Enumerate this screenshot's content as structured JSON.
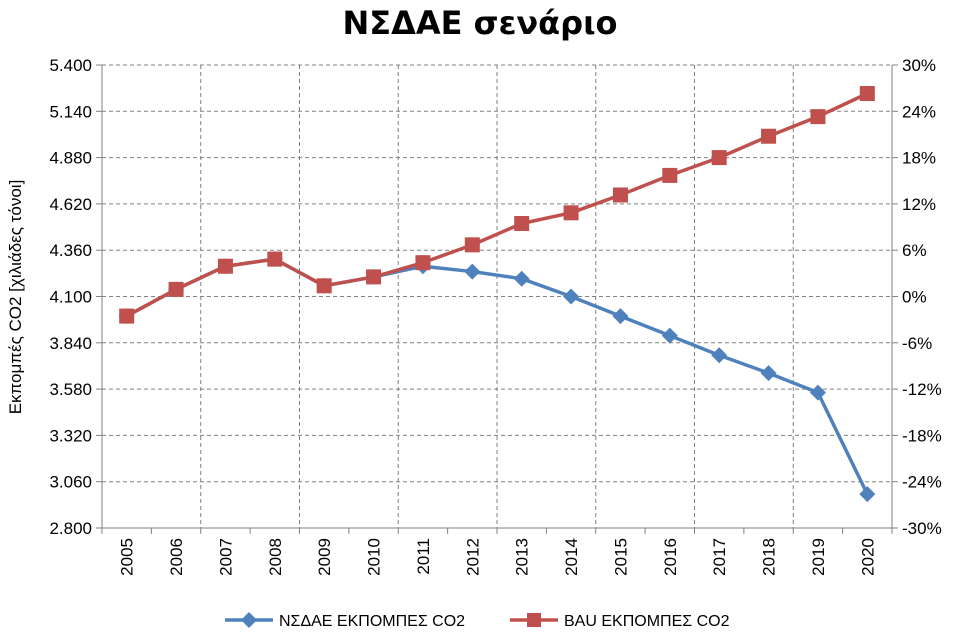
{
  "chart_data": {
    "type": "line",
    "title": "ΝΣΔΑΕ σενάριο",
    "ylabel": "Εκπομπές CO2 [χιλιάδες τόνοι]",
    "xlabel": "",
    "x": [
      "2005",
      "2006",
      "2007",
      "2008",
      "2009",
      "2010",
      "2011",
      "2012",
      "2013",
      "2014",
      "2015",
      "2016",
      "2017",
      "2018",
      "2019",
      "2020"
    ],
    "ylim": [
      2800,
      5400
    ],
    "yticks": [
      "2.800",
      "3.060",
      "3.320",
      "3.580",
      "3.840",
      "4.100",
      "4.360",
      "4.620",
      "4.880",
      "5.140",
      "5.400"
    ],
    "y2lim": [
      -30,
      30
    ],
    "y2ticks": [
      "-30%",
      "-24%",
      "-18%",
      "-12%",
      "-6%",
      "0%",
      "6%",
      "12%",
      "18%",
      "24%",
      "30%"
    ],
    "grid": true,
    "legend_position": "bottom",
    "series": [
      {
        "name": "ΝΣΔΑΕ ΕΚΠΟΜΠΕΣ CO2",
        "color": "#4F81BD",
        "marker": "diamond",
        "values": [
          3990,
          4140,
          4270,
          4310,
          4160,
          4210,
          4270,
          4240,
          4200,
          4100,
          3990,
          3880,
          3770,
          3670,
          3560,
          2990
        ]
      },
      {
        "name": "BAU ΕΚΠΟΜΠΕΣ CO2",
        "color": "#C0504D",
        "marker": "square",
        "values": [
          3990,
          4140,
          4270,
          4310,
          4160,
          4210,
          4290,
          4390,
          4510,
          4570,
          4670,
          4780,
          4880,
          5000,
          5110,
          5240
        ]
      }
    ]
  }
}
